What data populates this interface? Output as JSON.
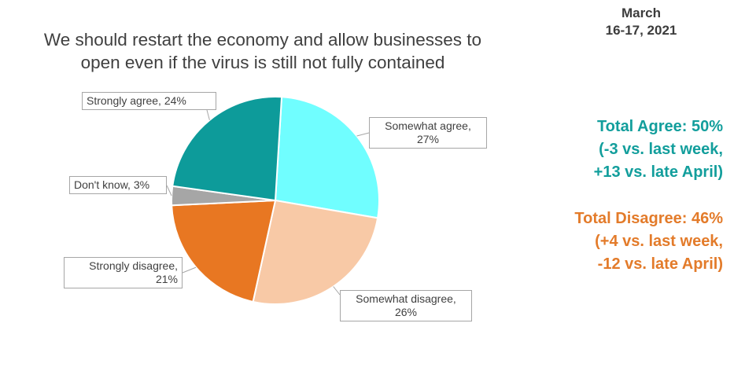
{
  "header": {
    "date_line1": "March",
    "date_line2": "16-17, 2021"
  },
  "chart_data": {
    "type": "pie",
    "title": [
      "We should restart the economy and allow businesses to",
      "open even if the virus is still not fully contained"
    ],
    "slices": [
      {
        "label": "Somewhat agree",
        "value": 27,
        "color": "#70feff",
        "callout": [
          "Somewhat agree,",
          "27%"
        ]
      },
      {
        "label": "Somewhat disagree",
        "value": 26,
        "color": "#f8c9a6",
        "callout": [
          "Somewhat disagree,",
          "26%"
        ]
      },
      {
        "label": "Strongly disagree",
        "value": 21,
        "color": "#e87722",
        "callout": [
          "Strongly disagree,",
          "21%"
        ]
      },
      {
        "label": "Don't know",
        "value": 3,
        "color": "#a6a6a6",
        "callout": [
          "Don't know, 3%"
        ]
      },
      {
        "label": "Strongly agree",
        "value": 24,
        "color": "#0d9b9a",
        "callout": [
          "Strongly agree, 24%"
        ]
      }
    ]
  },
  "summary": {
    "agree": {
      "color": "#129e9c",
      "lines": [
        "Total Agree: 50%",
        "(-3 vs. last week,",
        "+13 vs. late April)"
      ]
    },
    "disagree": {
      "color": "#e37b2a",
      "lines": [
        "Total Disagree: 46%",
        "(+4 vs. last week,",
        "-12 vs. late April)"
      ]
    }
  }
}
